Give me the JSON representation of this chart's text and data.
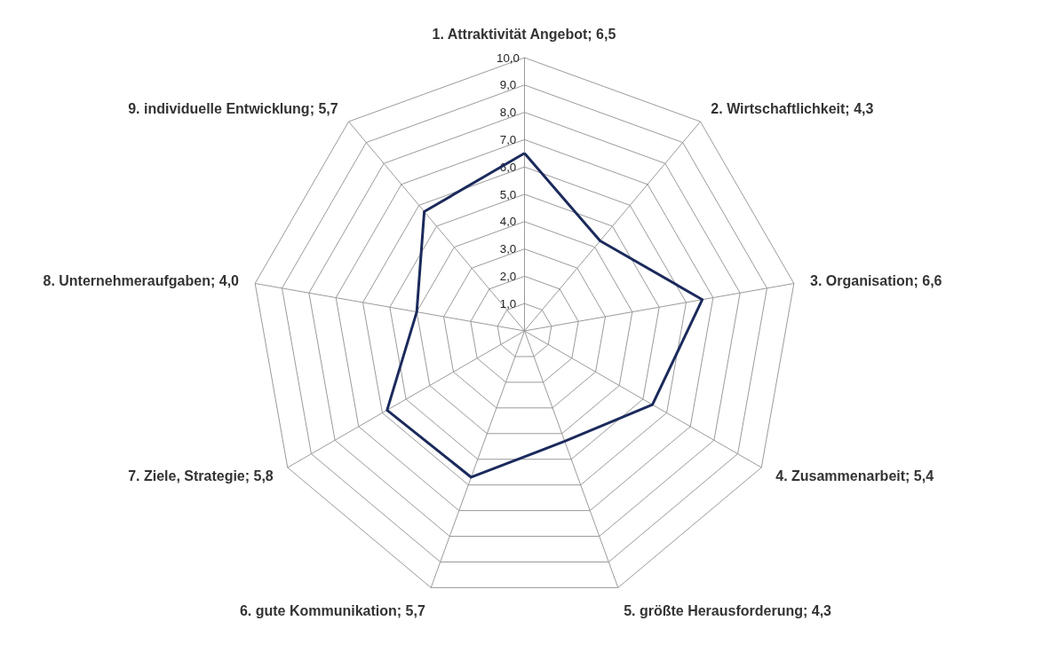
{
  "chart_data": {
    "type": "radar",
    "categories": [
      "1. Attraktivität Angebot; 6,5",
      "2. Wirtschaftlichkeit; 4,3",
      "3. Organisation; 6,6",
      "4. Zusammenarbeit; 5,4",
      "5. größte Herausforderung; 4,3",
      "6. gute Kommunikation; 5,7",
      "7. Ziele, Strategie; 5,8",
      "8. Unternehmeraufgaben; 4,0",
      "9. individuelle Entwicklung; 5,7"
    ],
    "series": [
      {
        "color": "#1b2a5c",
        "values": [
          6.5,
          4.3,
          6.6,
          5.4,
          4.3,
          5.7,
          5.8,
          4.0,
          5.7
        ]
      }
    ],
    "ylim": [
      0,
      10
    ],
    "yticks": [
      {
        "value": 1,
        "label": "1,0"
      },
      {
        "value": 2,
        "label": "2,0"
      },
      {
        "value": 3,
        "label": "3,0"
      },
      {
        "value": 4,
        "label": "4,0"
      },
      {
        "value": 5,
        "label": "5,0"
      },
      {
        "value": 6,
        "label": "6,0"
      },
      {
        "value": 7,
        "label": "7,0"
      },
      {
        "value": 8,
        "label": "8,0"
      },
      {
        "value": 9,
        "label": "9,0"
      },
      {
        "value": 10,
        "label": "10,0"
      }
    ],
    "grid": true,
    "marker": "none",
    "line_style": "solid"
  }
}
